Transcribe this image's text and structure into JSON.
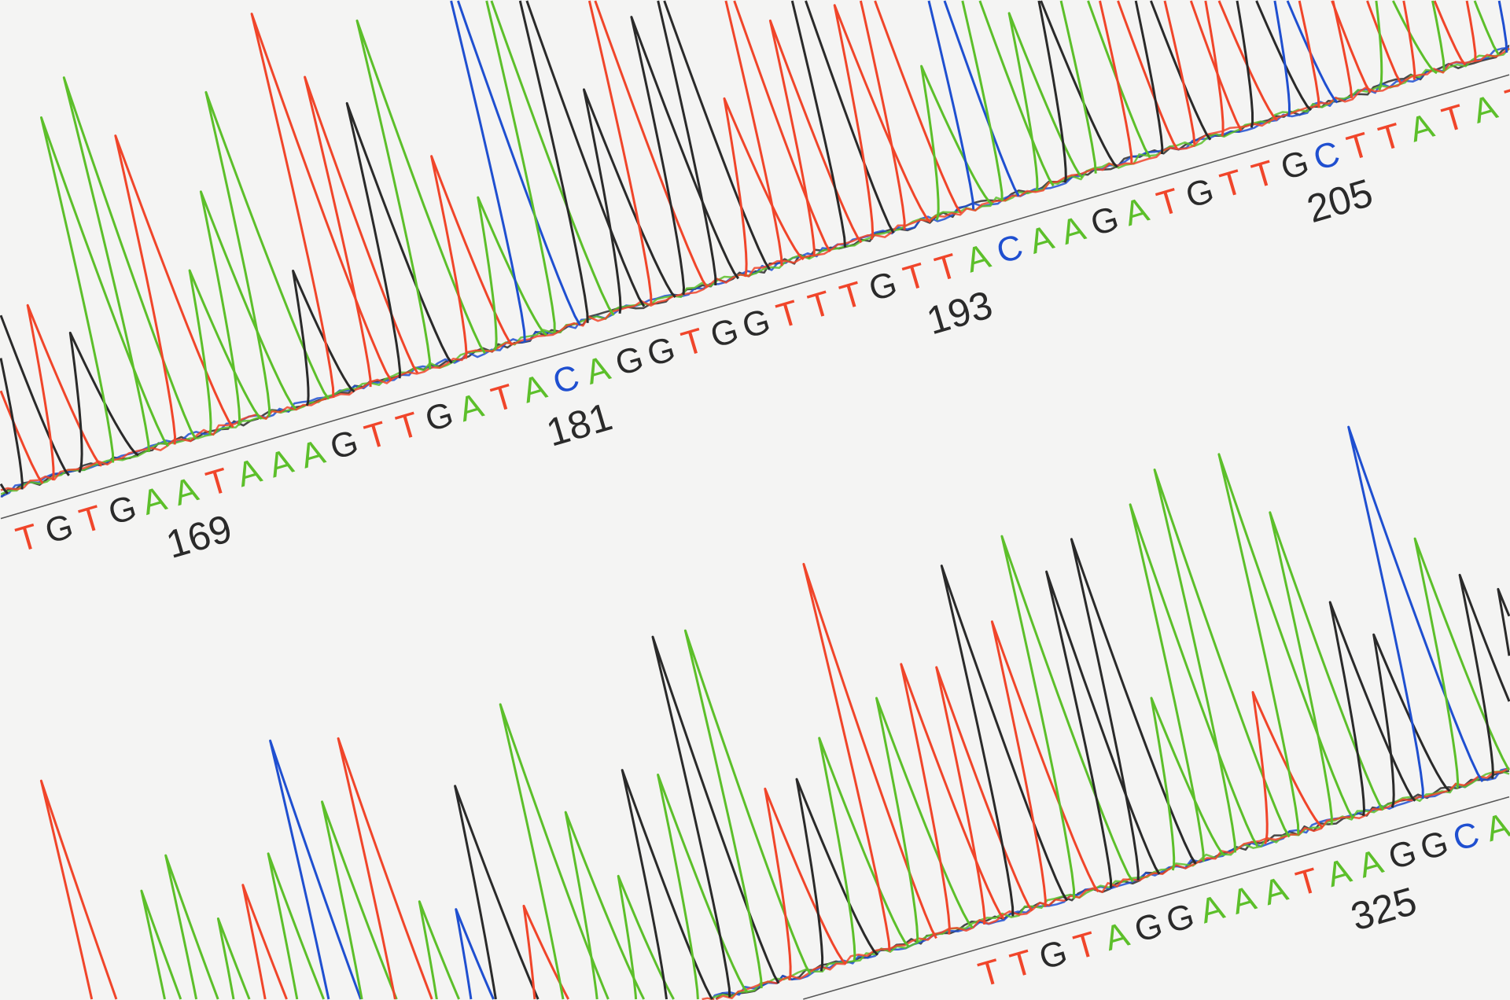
{
  "base_colors": {
    "A": "#5cbf2a",
    "C": "#1f4fd0",
    "G": "#2a2a2a",
    "T": "#f0452a"
  },
  "tracks": [
    {
      "sequence": "TGTGAATAAAGTTGATACAGGTGGTTTGTTACAAGATGTTGCTTATAT",
      "first_position": 164,
      "position_labels": [
        "169",
        "181",
        "193",
        "205"
      ]
    },
    {
      "sequence": "TTGTAGGAAATAAGGCAG",
      "first_position": 313,
      "position_labels": [
        "325"
      ]
    }
  ]
}
